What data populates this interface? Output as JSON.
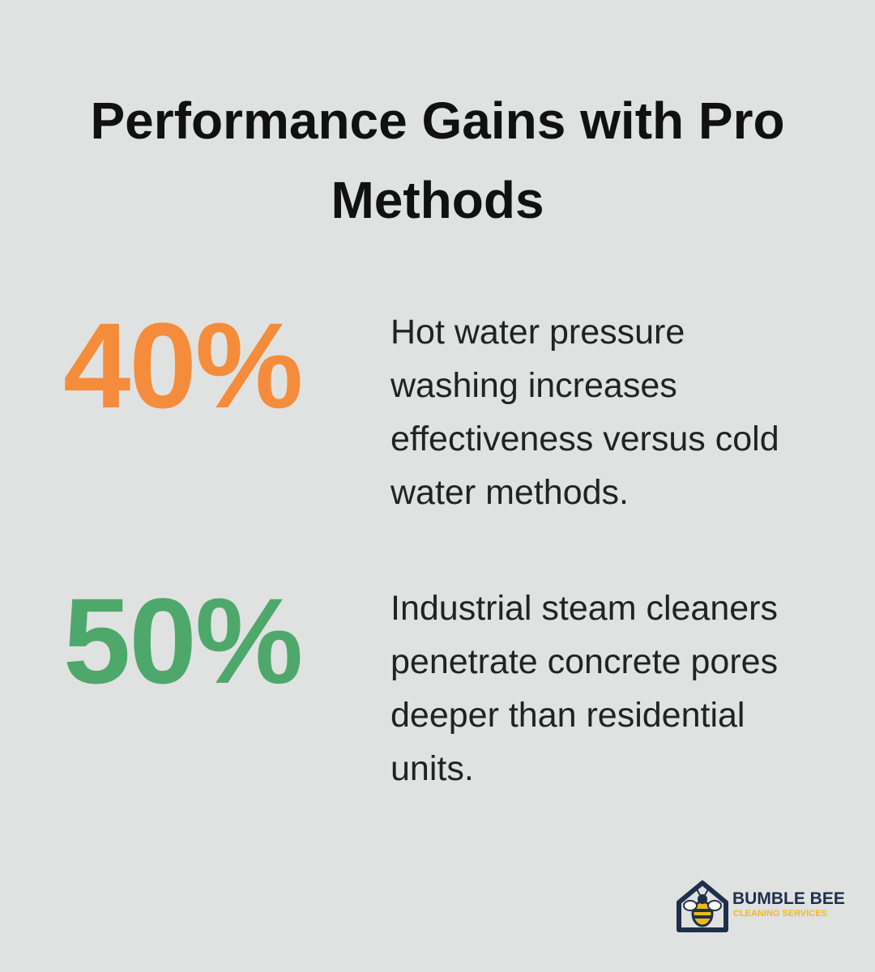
{
  "header": {
    "title": "Performance Gains with Pro Methods"
  },
  "stats": [
    {
      "value": "40%",
      "description": "Hot water pressure washing increases effectiveness versus cold water methods."
    },
    {
      "value": "50%",
      "description": "Industrial steam cleaners penetrate concrete pores deeper than residential units."
    }
  ],
  "logo": {
    "name": "BUMBLE BEE",
    "tagline": "CLEANING SERVICES"
  }
}
